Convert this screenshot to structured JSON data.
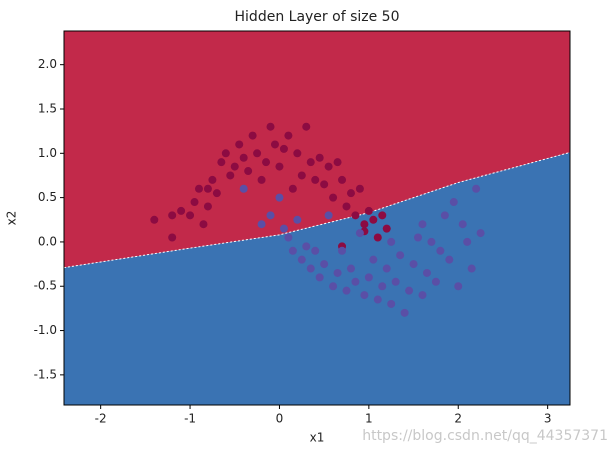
{
  "chart_data": {
    "type": "scatter",
    "title": "Hidden Layer of size 50",
    "xlabel": "x1",
    "ylabel": "x2",
    "watermark": "https://blog.csdn.net/qq_44357371",
    "xlim": [
      -2.41,
      3.25
    ],
    "ylim": [
      -1.84,
      2.38
    ],
    "xticks": [
      -2,
      -1,
      0,
      1,
      2,
      3
    ],
    "yticks": [
      -1.5,
      {
        "value": -1,
        "label": "-1.0"
      },
      -0.5,
      {
        "value": 0,
        "label": "0.0"
      },
      0.5,
      {
        "value": 1,
        "label": "1.0"
      },
      1.5,
      {
        "value": 2,
        "label": "2.0"
      }
    ],
    "regions": {
      "above_color": "#c2294a",
      "below_color": "#3a73b3"
    },
    "boundary": {
      "x": [
        -2.41,
        -1,
        0,
        1,
        2,
        3.25
      ],
      "values": [
        -0.29,
        -0.07,
        0.08,
        0.33,
        0.67,
        1.01
      ]
    },
    "series": [
      {
        "color": "#8c0b42",
        "x": [
          -1.4,
          -1.2,
          -1.1,
          -1.0,
          -0.95,
          -0.9,
          -0.85,
          -0.8,
          -0.75,
          -0.7,
          -0.65,
          -0.6,
          -0.55,
          -0.5,
          -0.45,
          -0.4,
          -0.35,
          -0.3,
          -0.25,
          -0.2,
          -0.15,
          -0.1,
          -0.05,
          0.0,
          0.05,
          0.1,
          0.15,
          0.2,
          0.25,
          0.3,
          0.35,
          0.4,
          0.45,
          0.5,
          0.55,
          0.6,
          0.65,
          0.7,
          0.75,
          0.8,
          0.85,
          0.9,
          0.95,
          1.0,
          1.05,
          1.15,
          1.2,
          0.7,
          0.95,
          1.1,
          -1.2,
          -0.8
        ],
        "values": [
          0.25,
          0.05,
          0.35,
          0.3,
          0.45,
          0.6,
          0.2,
          0.4,
          0.7,
          0.55,
          0.9,
          1.0,
          0.75,
          0.85,
          1.1,
          0.95,
          0.8,
          1.2,
          1.0,
          0.7,
          0.9,
          1.3,
          1.1,
          0.85,
          1.05,
          1.2,
          0.6,
          1.0,
          0.75,
          1.3,
          0.9,
          0.7,
          0.95,
          0.65,
          0.85,
          0.5,
          0.9,
          0.7,
          0.4,
          0.55,
          0.3,
          0.6,
          0.2,
          0.35,
          0.25,
          0.3,
          0.15,
          -0.05,
          0.12,
          0.05,
          0.3,
          0.6
        ]
      },
      {
        "color": "#5a4fa6",
        "x": [
          -0.4,
          -0.2,
          -0.1,
          0.0,
          0.05,
          0.1,
          0.15,
          0.2,
          0.25,
          0.3,
          0.35,
          0.4,
          0.45,
          0.5,
          0.55,
          0.6,
          0.65,
          0.7,
          0.75,
          0.8,
          0.85,
          0.9,
          0.95,
          1.0,
          1.05,
          1.1,
          1.15,
          1.2,
          1.25,
          1.3,
          1.35,
          1.4,
          1.45,
          1.5,
          1.55,
          1.6,
          1.65,
          1.7,
          1.75,
          1.8,
          1.85,
          1.9,
          1.95,
          2.0,
          2.05,
          2.1,
          2.15,
          2.2,
          2.25,
          1.6,
          1.25
        ],
        "values": [
          0.6,
          0.2,
          0.3,
          0.5,
          0.15,
          0.05,
          -0.1,
          0.25,
          -0.2,
          -0.05,
          -0.3,
          -0.1,
          -0.4,
          -0.25,
          0.3,
          -0.5,
          -0.35,
          -0.1,
          -0.55,
          -0.3,
          -0.45,
          0.1,
          -0.6,
          -0.4,
          -0.2,
          -0.65,
          -0.5,
          -0.3,
          -0.7,
          -0.45,
          -0.15,
          -0.8,
          -0.55,
          -0.25,
          0.05,
          -0.6,
          -0.35,
          0.0,
          -0.45,
          -0.1,
          0.3,
          -0.2,
          0.45,
          -0.5,
          0.2,
          0.0,
          -0.3,
          0.6,
          0.1,
          0.2,
          0.0
        ]
      }
    ]
  }
}
